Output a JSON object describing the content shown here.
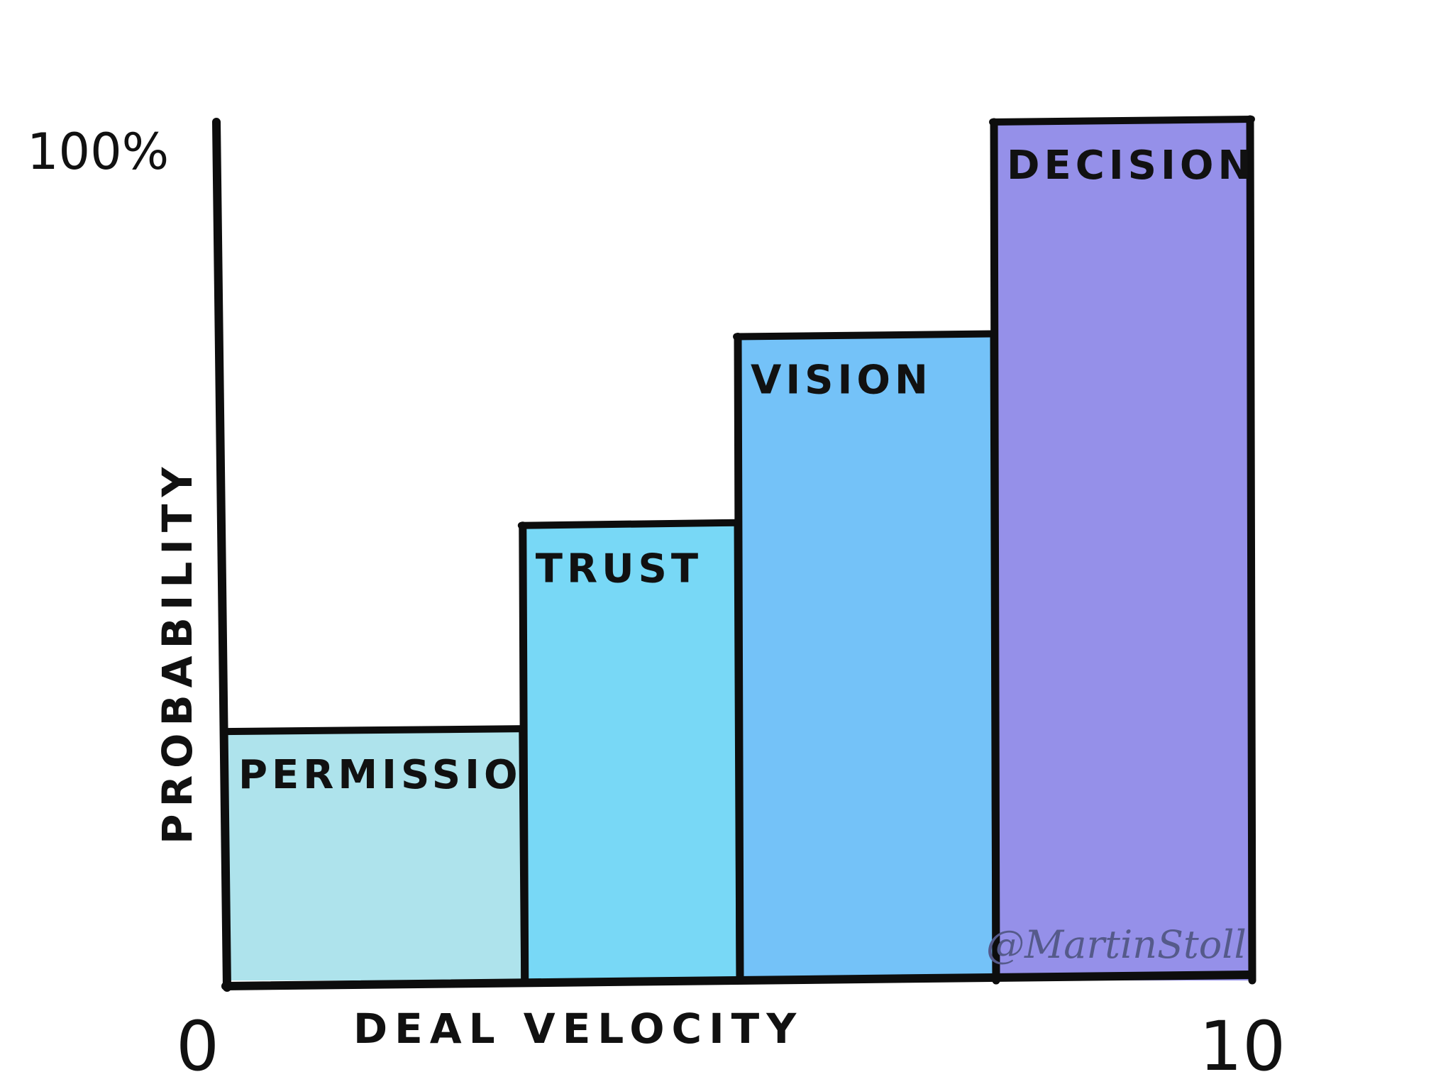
{
  "chart_data": {
    "type": "bar",
    "title": "",
    "xlabel": "DEAL VELOCITY",
    "ylabel": "PROBABILITY",
    "x_ticks": [
      "0",
      "10"
    ],
    "y_ticks": [
      "100%"
    ],
    "xlim": [
      0,
      10
    ],
    "ylim": [
      0,
      100
    ],
    "grid": false,
    "bars": [
      {
        "label": "PERMISSION",
        "x_start": 0.0,
        "x_end": 2.9,
        "value": 29,
        "color": "#aee3ec"
      },
      {
        "label": "TRUST",
        "x_start": 2.9,
        "x_end": 5.0,
        "value": 53,
        "color": "#78d8f6"
      },
      {
        "label": "VISION",
        "x_start": 5.0,
        "x_end": 7.5,
        "value": 75,
        "color": "#74c2f8"
      },
      {
        "label": "DECISION",
        "x_start": 7.5,
        "x_end": 10.0,
        "value": 100,
        "color": "#9590e9"
      }
    ]
  },
  "signature": "@MartinStoll"
}
